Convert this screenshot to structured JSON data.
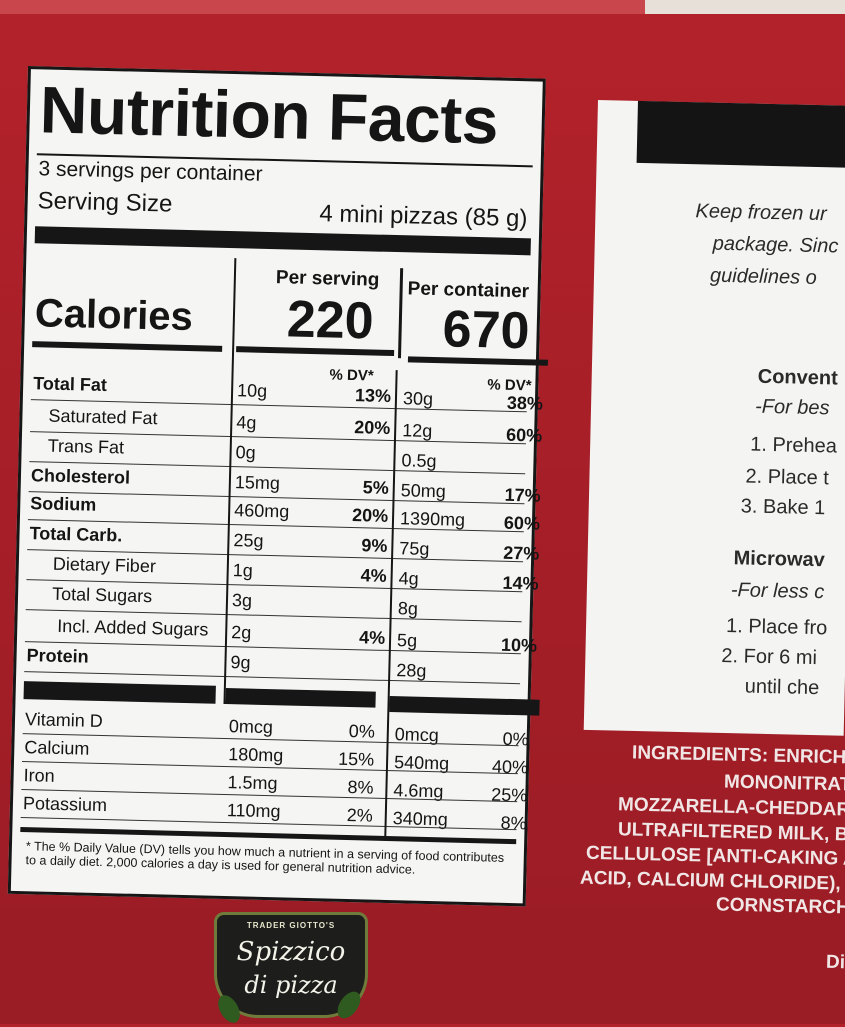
{
  "nutrition": {
    "title": "Nutrition Facts",
    "servings_per_container": "3 servings per container",
    "serving_size_label": "Serving Size",
    "serving_size_value": "4 mini pizzas (85 g)",
    "col_per_serving": "Per serving",
    "col_per_container": "Per container",
    "calories_label": "Calories",
    "calories_per_serving": "220",
    "calories_per_container": "670",
    "dv_header": "% DV*",
    "rows": [
      {
        "label": "Total Fat",
        "s_amt": "10g",
        "s_dv": "13%",
        "c_amt": "30g",
        "c_dv": "38%"
      },
      {
        "label": "Saturated Fat",
        "s_amt": "4g",
        "s_dv": "20%",
        "c_amt": "12g",
        "c_dv": "60%"
      },
      {
        "label": "Trans Fat",
        "s_amt": "0g",
        "s_dv": "",
        "c_amt": "0.5g",
        "c_dv": ""
      },
      {
        "label": "Cholesterol",
        "s_amt": "15mg",
        "s_dv": "5%",
        "c_amt": "50mg",
        "c_dv": "17%"
      },
      {
        "label": "Sodium",
        "s_amt": "460mg",
        "s_dv": "20%",
        "c_amt": "1390mg",
        "c_dv": "60%"
      },
      {
        "label": "Total Carb.",
        "s_amt": "25g",
        "s_dv": "9%",
        "c_amt": "75g",
        "c_dv": "27%"
      },
      {
        "label": "Dietary Fiber",
        "s_amt": "1g",
        "s_dv": "4%",
        "c_amt": "4g",
        "c_dv": "14%"
      },
      {
        "label": "Total Sugars",
        "s_amt": "3g",
        "s_dv": "",
        "c_amt": "8g",
        "c_dv": ""
      },
      {
        "label": "Incl. Added Sugars",
        "s_amt": "2g",
        "s_dv": "4%",
        "c_amt": "5g",
        "c_dv": "10%"
      },
      {
        "label": "Protein",
        "s_amt": "9g",
        "s_dv": "",
        "c_amt": "28g",
        "c_dv": ""
      }
    ],
    "vitamins": [
      {
        "label": "Vitamin D",
        "s_amt": "0mcg",
        "s_dv": "0%",
        "c_amt": "0mcg",
        "c_dv": "0%"
      },
      {
        "label": "Calcium",
        "s_amt": "180mg",
        "s_dv": "15%",
        "c_amt": "540mg",
        "c_dv": "40%"
      },
      {
        "label": "Iron",
        "s_amt": "1.5mg",
        "s_dv": "8%",
        "c_amt": "4.6mg",
        "c_dv": "25%"
      },
      {
        "label": "Potassium",
        "s_amt": "110mg",
        "s_dv": "2%",
        "c_amt": "340mg",
        "c_dv": "8%"
      }
    ],
    "footnote": "* The % Daily Value (DV) tells you how much a nutrient in a serving of food contributes to a daily diet. 2,000 calories a day is used for general nutrition advice."
  },
  "instructions": {
    "line1": "Keep frozen ur",
    "line2": "package. Sinc",
    "line3": "guidelines o",
    "conv_head": "Convent",
    "conv_sub": "-For bes",
    "step1": "1. Prehea",
    "step2": "2. Place t",
    "step3": "3. Bake 1",
    "micro_head": "Microwav",
    "micro_sub": "-For less c",
    "mstep1": "1. Place fro",
    "mstep2": "2. For 6 mi",
    "mstep2b": "until che"
  },
  "ingredients": {
    "l1": "INGREDIENTS: ENRICHE",
    "l2": "MONONITRAT",
    "l3": "MOZZARELLA-CHEDDAR-",
    "l4": "ULTRAFILTERED MILK, BA",
    "l5": "CELLULOSE [ANTI-CAKING AG",
    "l6": "ACID, CALCIUM CHLORIDE), WA",
    "l7": "CORNSTARCH,",
    "l8": "Di"
  },
  "logo": {
    "top": "TRADER GIOTTO'S",
    "line1": "Spizzico",
    "line2": "di pizza"
  }
}
